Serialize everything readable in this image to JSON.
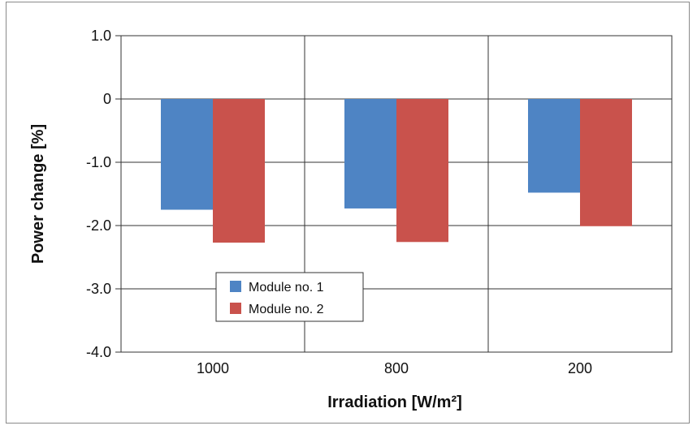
{
  "chart_data": {
    "type": "bar",
    "title": "",
    "xlabel": "Irradiation [W/m²]",
    "ylabel": "Power change [%]",
    "categories": [
      "1000",
      "800",
      "200"
    ],
    "series": [
      {
        "name": "Module no. 1",
        "color": "#4e84c4",
        "values": [
          -1.75,
          -1.73,
          -1.48
        ]
      },
      {
        "name": "Module no. 2",
        "color": "#c9524c",
        "values": [
          -2.27,
          -2.26,
          -2.01
        ]
      }
    ],
    "ylim": [
      -4.0,
      1.0
    ],
    "yticks": [
      "1.0",
      "0",
      "-1.0",
      "-2.0",
      "-3.0",
      "-4.0"
    ],
    "ytick_values": [
      1.0,
      0,
      -1.0,
      -2.0,
      -3.0,
      -4.0
    ],
    "grid": true,
    "legend_position": "bottom-left"
  }
}
